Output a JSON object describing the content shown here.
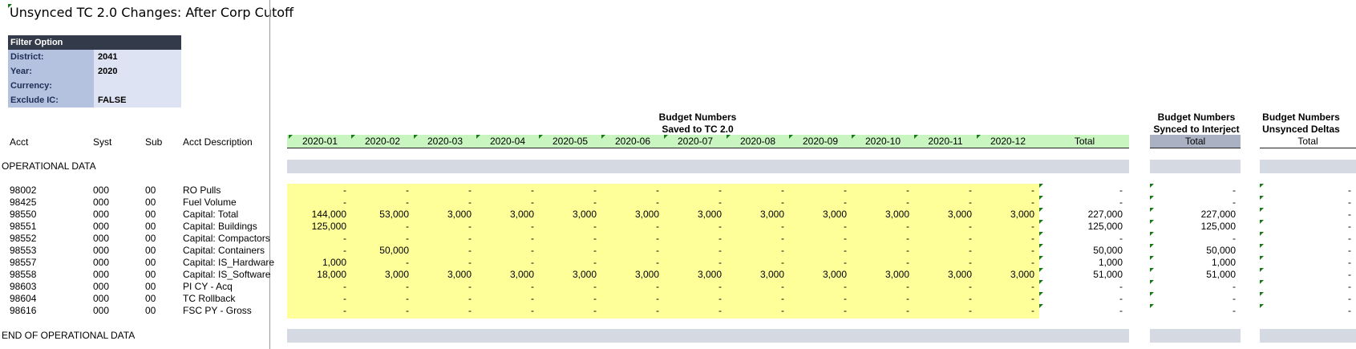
{
  "title": "Unsynced TC 2.0 Changes: After Corp Cutoff",
  "filter": {
    "header": "Filter Option",
    "rows": [
      {
        "label": "District:",
        "value": "2041"
      },
      {
        "label": "Year:",
        "value": "2020"
      },
      {
        "label": "Currency:",
        "value": ""
      },
      {
        "label": "Exclude IC:",
        "value": "FALSE"
      }
    ]
  },
  "groups": {
    "budget": {
      "line1": "Budget Numbers",
      "line2": "Saved to TC 2.0"
    },
    "synced": {
      "line1": "Budget Numbers",
      "line2": "Synced to Interject"
    },
    "deltas": {
      "line1": "Budget Numbers",
      "line2": "Unsynced Deltas"
    }
  },
  "columns": {
    "acct": "Acct",
    "syst": "Syst",
    "sub": "Sub",
    "desc": "Acct Description",
    "months": [
      "2020-01",
      "2020-02",
      "2020-03",
      "2020-04",
      "2020-05",
      "2020-06",
      "2020-07",
      "2020-08",
      "2020-09",
      "2020-10",
      "2020-11",
      "2020-12"
    ],
    "total": "Total",
    "synced_total": "Total",
    "deltas_total": "Total"
  },
  "sections": {
    "start": "OPERATIONAL DATA",
    "end": "END OF OPERATIONAL DATA"
  },
  "rows": [
    {
      "acct": "98002",
      "syst": "000",
      "sub": "00",
      "desc": "RO Pulls",
      "months": [
        "-",
        "-",
        "-",
        "-",
        "-",
        "-",
        "-",
        "-",
        "-",
        "-",
        "-",
        "-"
      ],
      "total": "-",
      "synced": "-",
      "delta": "-"
    },
    {
      "acct": "98425",
      "syst": "000",
      "sub": "00",
      "desc": "Fuel Volume",
      "months": [
        "-",
        "-",
        "-",
        "-",
        "-",
        "-",
        "-",
        "-",
        "-",
        "-",
        "-",
        "-"
      ],
      "total": "-",
      "synced": "-",
      "delta": "-"
    },
    {
      "acct": "98550",
      "syst": "000",
      "sub": "00",
      "desc": "Capital: Total",
      "months": [
        "144,000",
        "53,000",
        "3,000",
        "3,000",
        "3,000",
        "3,000",
        "3,000",
        "3,000",
        "3,000",
        "3,000",
        "3,000",
        "3,000"
      ],
      "total": "227,000",
      "synced": "227,000",
      "delta": "-"
    },
    {
      "acct": "98551",
      "syst": "000",
      "sub": "00",
      "desc": "Capital: Buildings",
      "months": [
        "125,000",
        "-",
        "-",
        "-",
        "-",
        "-",
        "-",
        "-",
        "-",
        "-",
        "-",
        "-"
      ],
      "total": "125,000",
      "synced": "125,000",
      "delta": "-"
    },
    {
      "acct": "98552",
      "syst": "000",
      "sub": "00",
      "desc": "Capital: Compactors",
      "months": [
        "-",
        "-",
        "-",
        "-",
        "-",
        "-",
        "-",
        "-",
        "-",
        "-",
        "-",
        "-"
      ],
      "total": "-",
      "synced": "-",
      "delta": "-"
    },
    {
      "acct": "98553",
      "syst": "000",
      "sub": "00",
      "desc": "Capital: Containers",
      "months": [
        "-",
        "50,000",
        "-",
        "-",
        "-",
        "-",
        "-",
        "-",
        "-",
        "-",
        "-",
        "-"
      ],
      "total": "50,000",
      "synced": "50,000",
      "delta": "-"
    },
    {
      "acct": "98557",
      "syst": "000",
      "sub": "00",
      "desc": "Capital: IS_Hardware",
      "months": [
        "1,000",
        "-",
        "-",
        "-",
        "-",
        "-",
        "-",
        "-",
        "-",
        "-",
        "-",
        "-"
      ],
      "total": "1,000",
      "synced": "1,000",
      "delta": "-"
    },
    {
      "acct": "98558",
      "syst": "000",
      "sub": "00",
      "desc": "Capital: IS_Software",
      "months": [
        "18,000",
        "3,000",
        "3,000",
        "3,000",
        "3,000",
        "3,000",
        "3,000",
        "3,000",
        "3,000",
        "3,000",
        "3,000",
        "3,000"
      ],
      "total": "51,000",
      "synced": "51,000",
      "delta": "-"
    },
    {
      "acct": "98603",
      "syst": "000",
      "sub": "00",
      "desc": "PI CY - Acq",
      "months": [
        "-",
        "-",
        "-",
        "-",
        "-",
        "-",
        "-",
        "-",
        "-",
        "-",
        "-",
        "-"
      ],
      "total": "-",
      "synced": "-",
      "delta": "-"
    },
    {
      "acct": "98604",
      "syst": "000",
      "sub": "00",
      "desc": "TC Rollback",
      "months": [
        "-",
        "-",
        "-",
        "-",
        "-",
        "-",
        "-",
        "-",
        "-",
        "-",
        "-",
        "-"
      ],
      "total": "-",
      "synced": "-",
      "delta": "-"
    },
    {
      "acct": "98616",
      "syst": "000",
      "sub": "00",
      "desc": "FSC PY - Gross",
      "months": [
        "-",
        "-",
        "-",
        "-",
        "-",
        "-",
        "-",
        "-",
        "-",
        "-",
        "-",
        "-"
      ],
      "total": "-",
      "synced": "-",
      "delta": "-"
    }
  ],
  "colors": {
    "month_header_fill": "#c8f5c0",
    "data_fill": "#ffff99",
    "band": "#d5dae2",
    "synced_header": "#a9b1c2",
    "filter_header": "#333b4a",
    "indicator": "#1a7a1a"
  }
}
